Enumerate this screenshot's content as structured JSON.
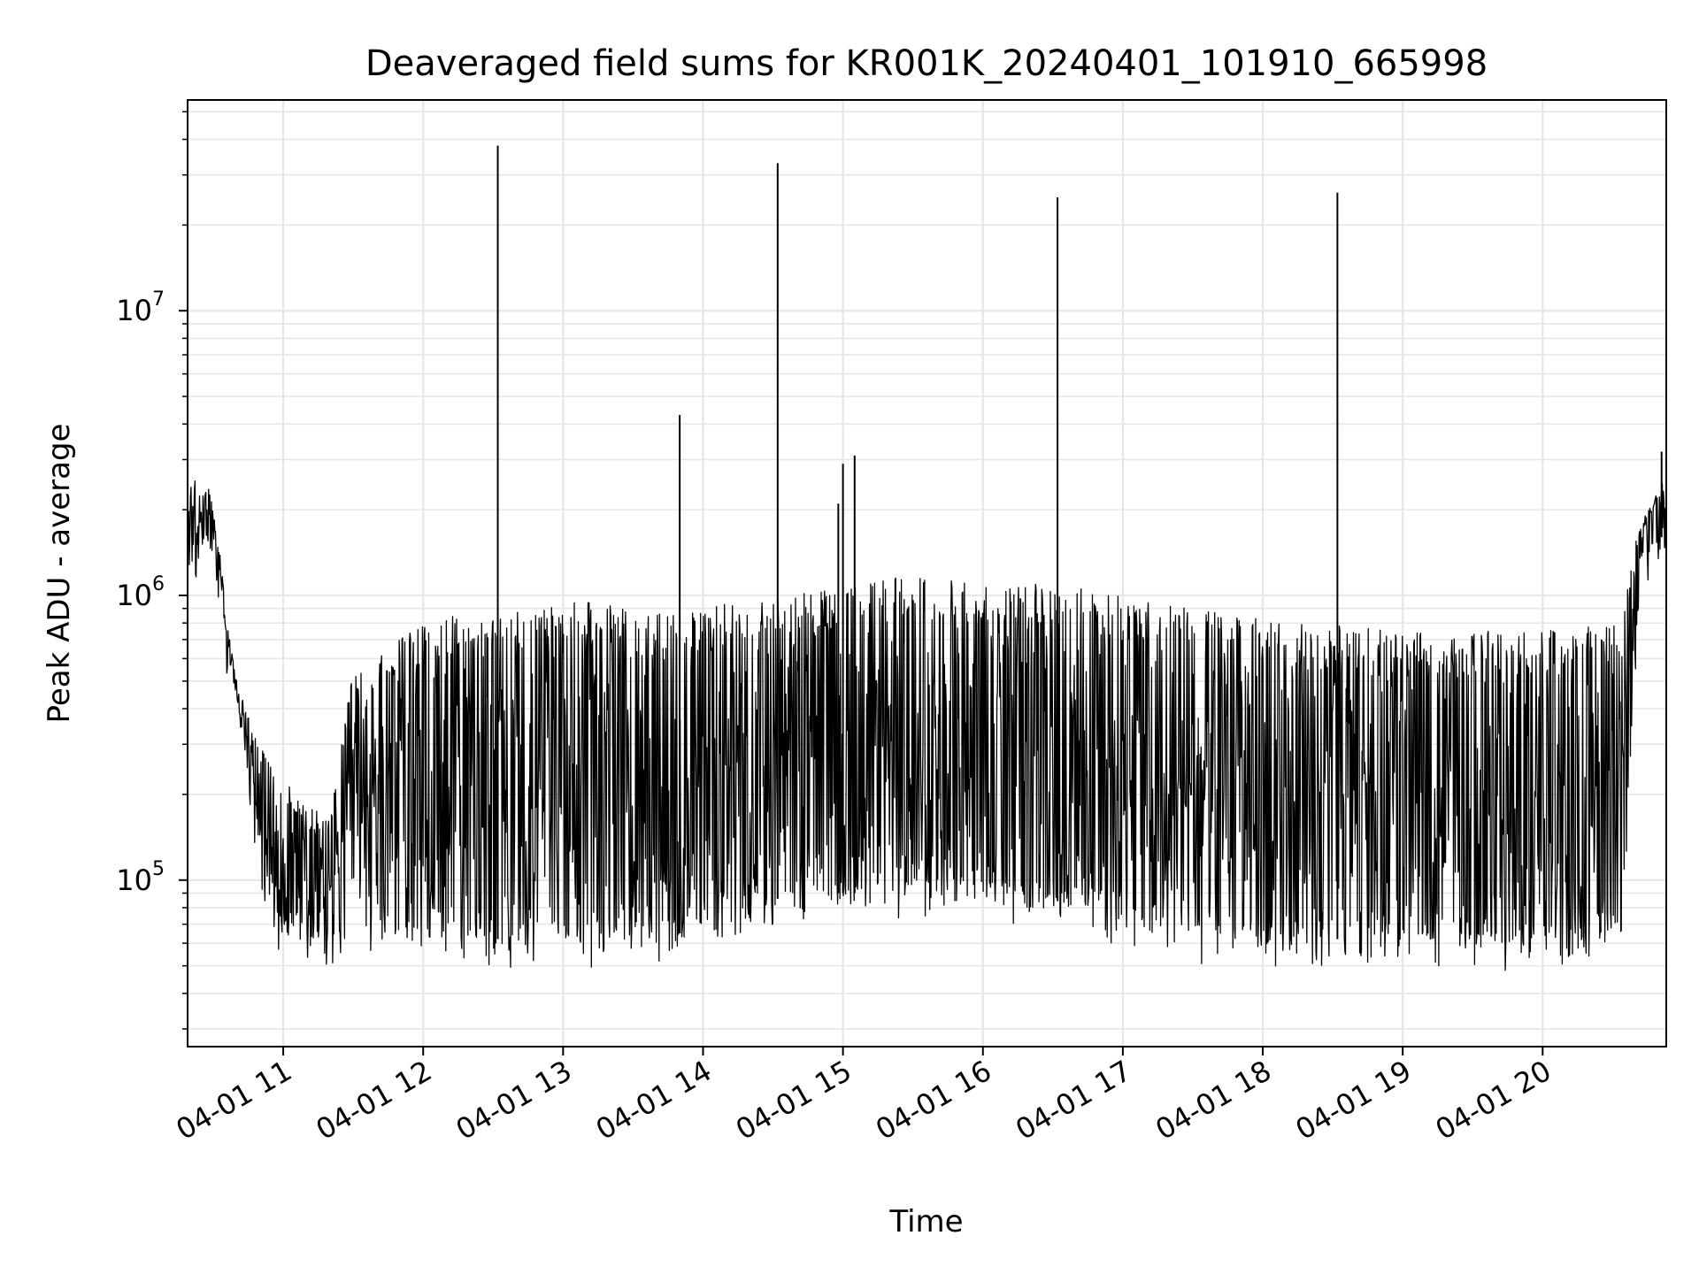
{
  "chart_data": {
    "type": "line",
    "title": "Deaveraged field sums for KR001K_20240401_101910_665998",
    "xlabel": "Time",
    "ylabel": "Peak ADU - average",
    "x_scale": "time",
    "y_scale": "log",
    "xlim": [
      "2024-04-01 10:19",
      "2024-04-01 20:53"
    ],
    "ylim": [
      26000,
      55000000
    ],
    "grid": true,
    "legend": "none",
    "series_color": "#000000",
    "x_ticks": [
      {
        "value": "2024-04-01 11:00",
        "label": "04-01 11"
      },
      {
        "value": "2024-04-01 12:00",
        "label": "04-01 12"
      },
      {
        "value": "2024-04-01 13:00",
        "label": "04-01 13"
      },
      {
        "value": "2024-04-01 14:00",
        "label": "04-01 14"
      },
      {
        "value": "2024-04-01 15:00",
        "label": "04-01 15"
      },
      {
        "value": "2024-04-01 16:00",
        "label": "04-01 16"
      },
      {
        "value": "2024-04-01 17:00",
        "label": "04-01 17"
      },
      {
        "value": "2024-04-01 18:00",
        "label": "04-01 18"
      },
      {
        "value": "2024-04-01 19:00",
        "label": "04-01 19"
      },
      {
        "value": "2024-04-01 20:00",
        "label": "04-01 20"
      }
    ],
    "y_ticks": [
      {
        "value": 100000,
        "base": "10",
        "exp": "5"
      },
      {
        "value": 1000000,
        "base": "10",
        "exp": "6"
      },
      {
        "value": 10000000,
        "base": "10",
        "exp": "7"
      }
    ],
    "series": [
      {
        "x": [
          "10:19",
          "10:22",
          "10:25",
          "10:28",
          "10:30",
          "10:33",
          "10:36",
          "10:40",
          "10:45",
          "10:50",
          "10:55",
          "11:00",
          "11:10",
          "11:20",
          "11:30",
          "11:40",
          "11:50",
          "12:00",
          "12:10",
          "12:20",
          "12:30",
          "12:40",
          "12:50",
          "13:00",
          "13:10",
          "13:20",
          "13:30",
          "13:40",
          "13:50",
          "14:00",
          "14:10",
          "14:20",
          "14:30",
          "14:40",
          "14:50",
          "15:00",
          "15:10",
          "15:20",
          "15:30",
          "15:40",
          "15:50",
          "16:00",
          "16:10",
          "16:20",
          "16:30",
          "16:40",
          "16:50",
          "17:00",
          "17:10",
          "17:20",
          "17:30",
          "17:40",
          "17:50",
          "18:00",
          "18:10",
          "18:20",
          "18:30",
          "18:40",
          "18:50",
          "19:00",
          "19:10",
          "19:20",
          "19:30",
          "19:40",
          "19:50",
          "20:00",
          "20:10",
          "20:20",
          "20:30",
          "20:35",
          "20:38",
          "20:42",
          "20:45",
          "20:48",
          "20:51",
          "20:53"
        ],
        "upper": [
          2500000,
          2600000,
          2300000,
          2400000,
          2000000,
          1400000,
          800000,
          500000,
          380000,
          300000,
          250000,
          230000,
          180000,
          170000,
          550000,
          600000,
          700000,
          800000,
          850000,
          880000,
          880000,
          900000,
          920000,
          940000,
          950000,
          930000,
          900000,
          880000,
          870000,
          900000,
          950000,
          980000,
          1000000,
          1020000,
          1050000,
          1080000,
          1100000,
          1150000,
          1180000,
          1150000,
          1120000,
          1100000,
          1080000,
          1100000,
          1120000,
          1100000,
          1080000,
          1050000,
          1000000,
          950000,
          900000,
          880000,
          860000,
          850000,
          820000,
          800000,
          780000,
          780000,
          760000,
          750000,
          740000,
          740000,
          750000,
          750000,
          760000,
          760000,
          770000,
          780000,
          800000,
          900000,
          1400000,
          1800000,
          2000000,
          2200000,
          2600000,
          2700000
        ],
        "lower": [
          1300000,
          1400000,
          1500000,
          1600000,
          1500000,
          1100000,
          650000,
          420000,
          260000,
          120000,
          80000,
          70000,
          65000,
          60000,
          65000,
          70000,
          70000,
          70000,
          65000,
          65000,
          62000,
          62000,
          60000,
          62000,
          62000,
          65000,
          65000,
          65000,
          65000,
          70000,
          75000,
          80000,
          85000,
          90000,
          90000,
          90000,
          90000,
          92000,
          95000,
          95000,
          95000,
          92000,
          90000,
          88000,
          85000,
          82000,
          80000,
          75000,
          70000,
          68000,
          66000,
          65000,
          64000,
          63000,
          62000,
          62000,
          62000,
          62000,
          62000,
          62000,
          62000,
          62000,
          62000,
          62000,
          62000,
          62000,
          62000,
          62000,
          65000,
          75000,
          350000,
          1300000,
          1400000,
          1500000,
          1600000,
          1700000
        ],
        "spikes": [
          {
            "x": "12:32",
            "y": 38000000
          },
          {
            "x": "13:50",
            "y": 4300000
          },
          {
            "x": "14:32",
            "y": 33000000
          },
          {
            "x": "14:58",
            "y": 2100000
          },
          {
            "x": "15:00",
            "y": 2900000
          },
          {
            "x": "15:05",
            "y": 3100000
          },
          {
            "x": "16:32",
            "y": 25000000
          },
          {
            "x": "18:32",
            "y": 26000000
          },
          {
            "x": "20:51",
            "y": 3200000
          }
        ]
      }
    ]
  }
}
